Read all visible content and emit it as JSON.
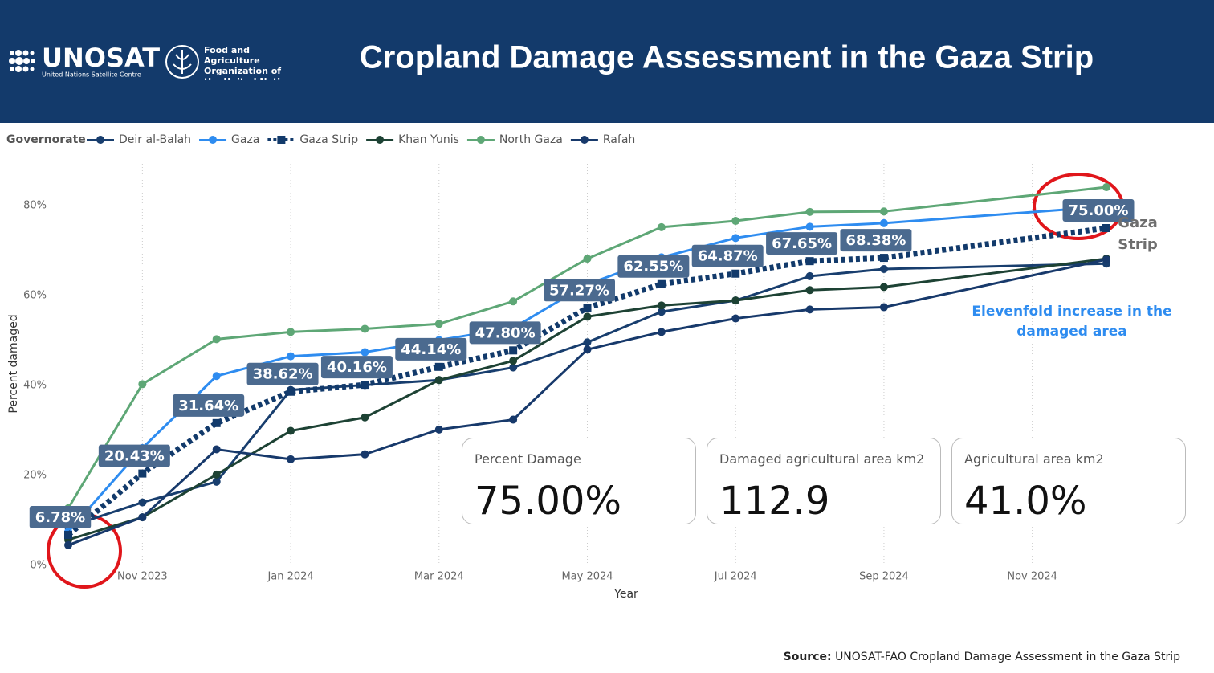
{
  "header": {
    "title": "Cropland Damage Assessment in the Gaza Strip",
    "unosat": "UNOSAT",
    "unosat_sub": "United Nations Satellite Centre",
    "fao": "Food and Agriculture Organization of the United Nations"
  },
  "chart_data": {
    "type": "line",
    "legend_title": "Governorate",
    "x_label": "Year",
    "y_label": "Percent damaged",
    "x": [
      "2023-10",
      "2023-11",
      "2023-12",
      "2024-01",
      "2024-02",
      "2024-03",
      "2024-04",
      "2024-05",
      "2024-06",
      "2024-07",
      "2024-08",
      "2024-09",
      "2024-12"
    ],
    "xlim": [
      "2023-10",
      "2024-12"
    ],
    "xticks": [
      {
        "value": "2023-11",
        "label": "Nov 2023"
      },
      {
        "value": "2024-01",
        "label": "Jan 2024"
      },
      {
        "value": "2024-03",
        "label": "Mar 2024"
      },
      {
        "value": "2024-05",
        "label": "May 2024"
      },
      {
        "value": "2024-07",
        "label": "Jul 2024"
      },
      {
        "value": "2024-09",
        "label": "Sep 2024"
      },
      {
        "value": "2024-11",
        "label": "Nov 2024"
      }
    ],
    "ylim": [
      0,
      90
    ],
    "yticks": [
      {
        "value": 0,
        "label": "0%"
      },
      {
        "value": 20,
        "label": "20%"
      },
      {
        "value": 40,
        "label": "40%"
      },
      {
        "value": 60,
        "label": "60%"
      },
      {
        "value": 80,
        "label": "80%"
      }
    ],
    "grid": "x",
    "series": [
      {
        "name": "Deir al-Balah",
        "color": "#183e6e",
        "values": [
          8.6,
          14.0,
          18.6,
          39.0,
          40.1,
          41.2,
          44.0,
          49.6,
          56.4,
          58.9,
          64.3,
          65.9,
          67.1
        ]
      },
      {
        "name": "Gaza",
        "color": "#2e8cf0",
        "values": [
          7.5,
          26.1,
          42.1,
          46.5,
          47.4,
          50.1,
          52.8,
          62.5,
          68.5,
          72.8,
          75.3,
          76.1,
          79.8
        ]
      },
      {
        "name": "Gaza Strip",
        "color": "#123a6b",
        "dashed": true,
        "values": [
          6.78,
          20.43,
          31.64,
          38.62,
          40.16,
          44.14,
          47.8,
          57.27,
          62.55,
          64.87,
          67.65,
          68.38,
          75.0
        ],
        "value_labels": [
          "6.78%",
          "20.43%",
          "31.64%",
          "38.62%",
          "40.16%",
          "44.14%",
          "47.80%",
          "57.27%",
          "62.55%",
          "64.87%",
          "67.65%",
          "68.38%",
          "75.00%"
        ]
      },
      {
        "name": "Khan Yunis",
        "color": "#1d4234",
        "values": [
          5.7,
          10.7,
          20.2,
          29.9,
          32.9,
          41.2,
          45.5,
          55.3,
          57.8,
          58.9,
          61.2,
          61.9,
          68.2
        ]
      },
      {
        "name": "North Gaza",
        "color": "#5ea776",
        "values": [
          12.7,
          40.3,
          50.3,
          51.9,
          52.6,
          53.7,
          58.7,
          68.2,
          75.2,
          76.6,
          78.6,
          78.7,
          84.1
        ]
      },
      {
        "name": "Rafah",
        "color": "#17396b",
        "values": [
          4.5,
          10.7,
          25.8,
          23.6,
          24.7,
          30.2,
          32.4,
          48.0,
          51.9,
          54.9,
          56.9,
          57.4,
          68.0
        ]
      }
    ],
    "annotations": [
      "Gaza Strip",
      "Elevenfold increase in the damaged area"
    ]
  },
  "cards": [
    {
      "label": "Percent Damage",
      "value": "75.00%"
    },
    {
      "label": "Damaged agricultural area km2",
      "value": "112.9"
    },
    {
      "label": "Agricultural area km2",
      "value": "41.0%"
    }
  ],
  "source": {
    "label": "Source:",
    "text": "UNOSAT-FAO Cropland Damage Assessment in the Gaza Strip"
  }
}
